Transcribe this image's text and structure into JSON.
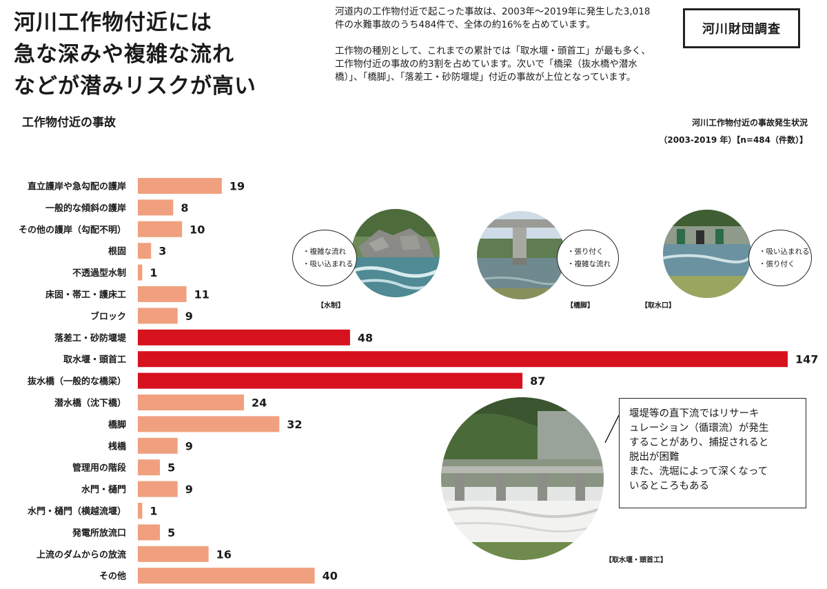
{
  "headline": [
    "河川工作物付近には",
    "急な深みや複雑な流れ",
    "などが潜みリスクが高い"
  ],
  "subtitle": "工作物付近の事故",
  "intro": {
    "p1": "河道内の工作物付近で起こった事故は、2003年〜2019年に発生した3,018件の水難事故のうち484件で、全体の約16%を占めています。",
    "p2": "工作物の種別として、これまでの累計では「取水堰・頭首工」が最も多く、工作物付近の事故の約3割を占めています。次いで「橋梁（抜水橋や潜水橋）」、「橋脚」、「落差工・砂防堰堤」付近の事故が上位となっています。"
  },
  "survey_label": "河川財団調査",
  "chart_title": {
    "line1": "河川工作物付近の事故発生状況",
    "line2": "（2003-2019 年）【n=484（件数）】"
  },
  "chart_data": {
    "type": "bar",
    "orientation": "horizontal",
    "categories": [
      "直立護岸や急勾配の護岸",
      "一般的な傾斜の護岸",
      "その他の護岸（勾配不明）",
      "根固",
      "不透過型水制",
      "床固・帯工・護床工",
      "ブロック",
      "落差工・砂防堰堤",
      "取水堰・頭首工",
      "抜水橋（一般的な橋梁）",
      "潜水橋（沈下橋）",
      "橋脚",
      "桟橋",
      "管理用の階段",
      "水門・樋門",
      "水門・樋門（横越流堰）",
      "発電所放流口",
      "上流のダムからの放流",
      "その他"
    ],
    "values": [
      19,
      8,
      10,
      3,
      1,
      11,
      9,
      48,
      147,
      87,
      24,
      32,
      9,
      5,
      9,
      1,
      5,
      16,
      40
    ],
    "highlighted": [
      false,
      false,
      false,
      false,
      false,
      false,
      false,
      true,
      true,
      true,
      false,
      false,
      false,
      false,
      false,
      false,
      false,
      false,
      false
    ],
    "colors": {
      "normal": "#f0a07e",
      "highlight": "#d7121f"
    },
    "xlim": [
      0,
      147
    ],
    "grid": false,
    "data_labels": true
  },
  "photos": [
    {
      "caption": "【水制】",
      "bullets": [
        "・複雑な流れ",
        "・吸い込まれる"
      ]
    },
    {
      "caption": "【橋脚】",
      "bullets": [
        "・張り付く",
        "・複雑な流れ"
      ]
    },
    {
      "caption": "【取水口】",
      "bullets": [
        "・吸い込まれる",
        "・張り付く"
      ]
    }
  ],
  "big_photo": {
    "caption": "【取水堰・頭首工】"
  },
  "note": [
    "堰堤等の直下流ではリサーキ",
    "ュレーション（循環流）が発生",
    "することがあり、捕捉されると",
    "脱出が困難",
    "また、洗堀によって深くなって",
    "いるところもある"
  ]
}
